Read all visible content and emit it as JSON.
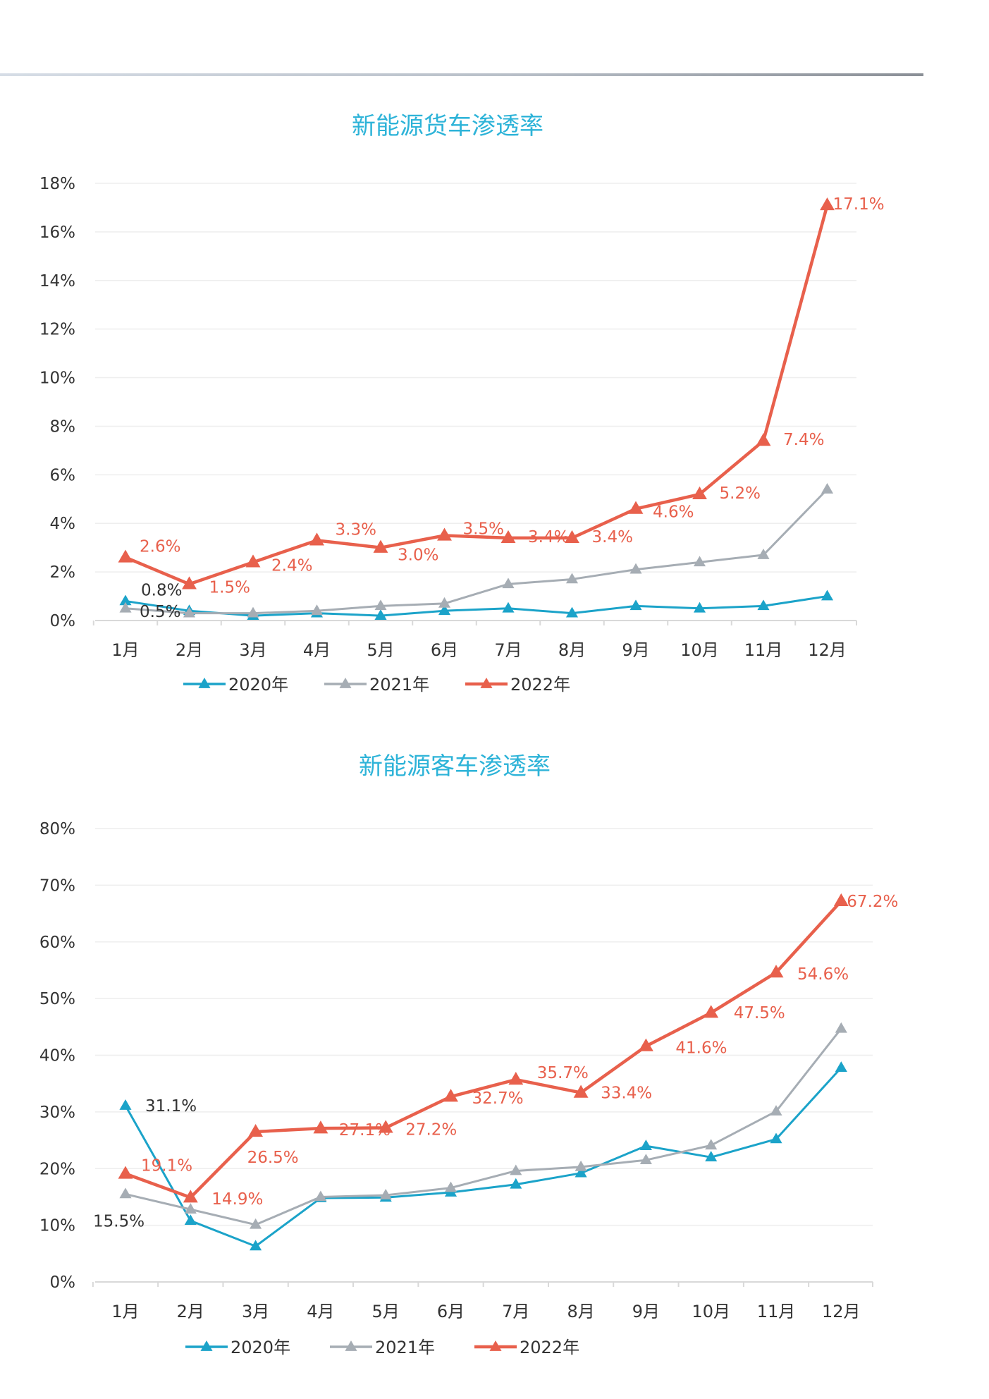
{
  "chart_data": [
    {
      "type": "line",
      "title": "新能源货车渗透率",
      "categories": [
        "1月",
        "2月",
        "3月",
        "4月",
        "5月",
        "6月",
        "7月",
        "8月",
        "9月",
        "10月",
        "11月",
        "12月"
      ],
      "yticks": [
        "0%",
        "2%",
        "4%",
        "6%",
        "8%",
        "10%",
        "12%",
        "14%",
        "16%",
        "18%"
      ],
      "ylim": [
        0,
        18
      ],
      "grid": true,
      "legend_position": "bottom",
      "series": [
        {
          "name": "2020年",
          "color": "#1ba3c9",
          "values": [
            0.8,
            0.4,
            0.2,
            0.3,
            0.2,
            0.4,
            0.5,
            0.3,
            0.6,
            0.5,
            0.6,
            1.0
          ],
          "labels": [
            "0.8%",
            "",
            "",
            "",
            "",
            "",
            "",
            "",
            "",
            "",
            "",
            ""
          ]
        },
        {
          "name": "2021年",
          "color": "#a6adb4",
          "values": [
            0.5,
            0.3,
            0.3,
            0.4,
            0.6,
            0.7,
            1.5,
            1.7,
            2.1,
            2.4,
            2.7,
            5.4
          ],
          "labels": [
            "0.5%",
            "",
            "",
            "",
            "",
            "",
            "",
            "",
            "",
            "",
            "",
            ""
          ]
        },
        {
          "name": "2022年",
          "color": "#e8604c",
          "values": [
            2.6,
            1.5,
            2.4,
            3.3,
            3.0,
            3.5,
            3.4,
            3.4,
            4.6,
            5.2,
            7.4,
            17.1
          ],
          "labels": [
            "2.6%",
            "1.5%",
            "2.4%",
            "3.3%",
            "3.0%",
            "3.5%",
            "3.4%",
            "3.4%",
            "4.6%",
            "5.2%",
            "7.4%",
            "17.1%"
          ]
        }
      ]
    },
    {
      "type": "line",
      "title": "新能源客车渗透率",
      "categories": [
        "1月",
        "2月",
        "3月",
        "4月",
        "5月",
        "6月",
        "7月",
        "8月",
        "9月",
        "10月",
        "11月",
        "12月"
      ],
      "yticks": [
        "0%",
        "10%",
        "20%",
        "30%",
        "40%",
        "50%",
        "60%",
        "70%",
        "80%"
      ],
      "ylim": [
        0,
        80
      ],
      "grid": true,
      "legend_position": "bottom",
      "series": [
        {
          "name": "2020年",
          "color": "#1ba3c9",
          "values": [
            31.1,
            10.8,
            6.3,
            14.8,
            14.9,
            15.8,
            17.2,
            19.2,
            24.0,
            22.0,
            25.2,
            37.8
          ],
          "labels": [
            "31.1%",
            "",
            "",
            "",
            "",
            "",
            "",
            "",
            "",
            "",
            "",
            ""
          ]
        },
        {
          "name": "2021年",
          "color": "#a6adb4",
          "values": [
            15.5,
            12.8,
            10.1,
            15.0,
            15.3,
            16.6,
            19.6,
            20.3,
            21.5,
            24.1,
            30.1,
            44.7
          ],
          "labels": [
            "15.5%",
            "",
            "",
            "",
            "",
            "",
            "",
            "",
            "",
            "",
            "",
            ""
          ]
        },
        {
          "name": "2022年",
          "color": "#e8604c",
          "values": [
            19.1,
            14.9,
            26.5,
            27.1,
            27.2,
            32.7,
            35.7,
            33.4,
            41.6,
            47.5,
            54.6,
            67.2
          ],
          "labels": [
            "19.1%",
            "14.9%",
            "26.5%",
            "27.1%",
            "27.2%",
            "32.7%",
            "35.7%",
            "33.4%",
            "41.6%",
            "47.5%",
            "54.6%",
            "67.2%"
          ]
        }
      ]
    }
  ]
}
